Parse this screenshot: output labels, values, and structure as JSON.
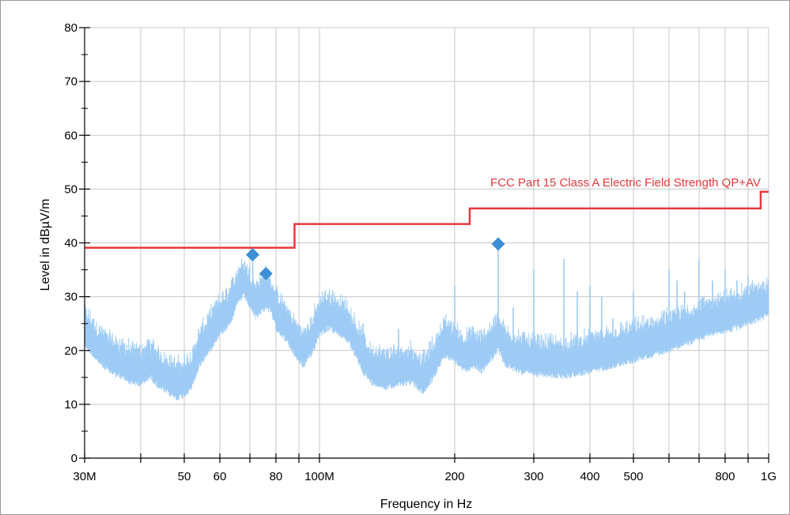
{
  "chart_data": {
    "type": "line",
    "title": "",
    "xlabel": "Frequency in Hz",
    "ylabel": "Level in dBµV/m",
    "x_scale": "log",
    "xlim": [
      30000000,
      1000000000
    ],
    "ylim": [
      0,
      80
    ],
    "grid": true,
    "y_ticks": [
      0,
      10,
      20,
      30,
      40,
      50,
      60,
      70,
      80
    ],
    "x_major_ticks": [
      {
        "value": 30000000,
        "label": "30M"
      },
      {
        "value": 50000000,
        "label": "50"
      },
      {
        "value": 60000000,
        "label": "60"
      },
      {
        "value": 80000000,
        "label": "80"
      },
      {
        "value": 100000000,
        "label": "100M"
      },
      {
        "value": 200000000,
        "label": "200"
      },
      {
        "value": 300000000,
        "label": "300"
      },
      {
        "value": 400000000,
        "label": "400"
      },
      {
        "value": 500000000,
        "label": "500"
      },
      {
        "value": 800000000,
        "label": "800"
      },
      {
        "value": 1000000000,
        "label": "1G"
      }
    ],
    "x_grid": [
      30000000,
      40000000,
      50000000,
      60000000,
      70000000,
      80000000,
      90000000,
      100000000,
      200000000,
      300000000,
      400000000,
      500000000,
      600000000,
      700000000,
      800000000,
      900000000,
      1000000000
    ],
    "limit_line": {
      "name": "FCC Part 15 Class A Electric Field Strength QP+AV",
      "color": "#e8383d",
      "points": [
        [
          30000000,
          39.1
        ],
        [
          88000000,
          39.1
        ],
        [
          88000000,
          43.5
        ],
        [
          216000000,
          43.5
        ],
        [
          216000000,
          46.4
        ],
        [
          960000000,
          46.4
        ],
        [
          960000000,
          49.5
        ],
        [
          1000000000,
          49.5
        ]
      ]
    },
    "spectrum": {
      "color": "#9dcbf5",
      "points": [
        [
          30000000,
          24
        ],
        [
          32000000,
          21
        ],
        [
          34000000,
          19
        ],
        [
          36000000,
          18
        ],
        [
          38000000,
          17
        ],
        [
          40000000,
          16.5
        ],
        [
          42000000,
          18
        ],
        [
          44000000,
          16
        ],
        [
          46000000,
          15
        ],
        [
          48000000,
          14
        ],
        [
          50000000,
          14.5
        ],
        [
          52000000,
          16
        ],
        [
          54000000,
          20
        ],
        [
          56000000,
          22
        ],
        [
          58000000,
          24
        ],
        [
          60000000,
          26
        ],
        [
          62000000,
          27
        ],
        [
          64000000,
          29
        ],
        [
          66000000,
          32
        ],
        [
          68000000,
          33
        ],
        [
          70000000,
          31
        ],
        [
          72000000,
          29
        ],
        [
          74000000,
          30
        ],
        [
          76000000,
          31
        ],
        [
          78000000,
          30
        ],
        [
          80000000,
          27
        ],
        [
          84000000,
          25
        ],
        [
          88000000,
          22
        ],
        [
          92000000,
          20
        ],
        [
          96000000,
          22
        ],
        [
          100000000,
          26
        ],
        [
          105000000,
          27
        ],
        [
          110000000,
          26
        ],
        [
          115000000,
          25
        ],
        [
          120000000,
          22
        ],
        [
          125000000,
          19
        ],
        [
          130000000,
          17
        ],
        [
          140000000,
          16
        ],
        [
          150000000,
          16.5
        ],
        [
          160000000,
          17
        ],
        [
          170000000,
          15
        ],
        [
          180000000,
          18
        ],
        [
          190000000,
          22
        ],
        [
          200000000,
          21
        ],
        [
          210000000,
          19
        ],
        [
          220000000,
          20
        ],
        [
          230000000,
          19
        ],
        [
          240000000,
          21
        ],
        [
          250000000,
          23
        ],
        [
          260000000,
          20
        ],
        [
          280000000,
          19
        ],
        [
          300000000,
          18.5
        ],
        [
          350000000,
          18
        ],
        [
          400000000,
          19
        ],
        [
          450000000,
          20
        ],
        [
          500000000,
          21
        ],
        [
          550000000,
          22
        ],
        [
          600000000,
          23
        ],
        [
          650000000,
          24
        ],
        [
          700000000,
          25
        ],
        [
          750000000,
          26
        ],
        [
          800000000,
          26.5
        ],
        [
          850000000,
          27
        ],
        [
          900000000,
          28
        ],
        [
          950000000,
          28.5
        ],
        [
          1000000000,
          29.5
        ]
      ],
      "spikes": [
        [
          71000000,
          37
        ],
        [
          75000000,
          35
        ],
        [
          125000000,
          25
        ],
        [
          150000000,
          24
        ],
        [
          200000000,
          32
        ],
        [
          250000000,
          39.5
        ],
        [
          270000000,
          28
        ],
        [
          300000000,
          35
        ],
        [
          350000000,
          37
        ],
        [
          375000000,
          31
        ],
        [
          400000000,
          32
        ],
        [
          425000000,
          30
        ],
        [
          450000000,
          26
        ],
        [
          500000000,
          31
        ],
        [
          600000000,
          35
        ],
        [
          625000000,
          33
        ],
        [
          650000000,
          31
        ],
        [
          700000000,
          37
        ],
        [
          750000000,
          33
        ],
        [
          800000000,
          35
        ],
        [
          850000000,
          33
        ],
        [
          900000000,
          34
        ]
      ]
    },
    "markers": {
      "color": "#3d8fd6",
      "points": [
        [
          71000000,
          37.8
        ],
        [
          76000000,
          34.3
        ],
        [
          250000000,
          39.8
        ]
      ]
    }
  }
}
